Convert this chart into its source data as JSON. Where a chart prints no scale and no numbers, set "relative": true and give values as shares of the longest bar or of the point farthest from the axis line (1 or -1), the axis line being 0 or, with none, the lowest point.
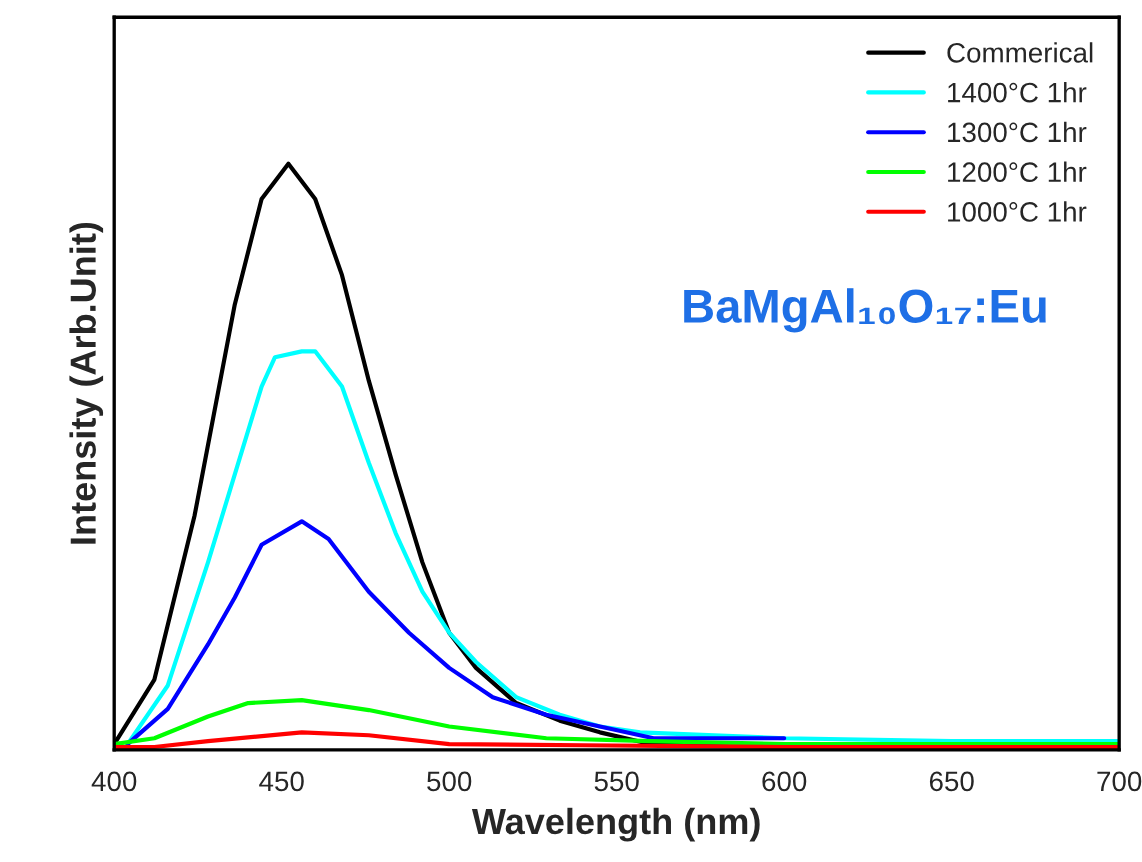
{
  "chart_data": {
    "type": "line",
    "xlabel": "Wavelength (nm)",
    "ylabel": "Intensity (Arb.Unit)",
    "relative": true,
    "xlim": [
      400,
      700
    ],
    "xticks": [
      400,
      450,
      500,
      550,
      600,
      650,
      700
    ],
    "legend": "top right",
    "grid": false,
    "marker": "none",
    "line_style": "solid",
    "annotations": [
      "BaMgAl₁₀O₁₇:Eu"
    ],
    "series": [
      {
        "name": "Commerical",
        "color": "#000000",
        "x": [
          400,
          412,
          424,
          436,
          444,
          452,
          460,
          468,
          476,
          484,
          492,
          500,
          508,
          520,
          533,
          545,
          560,
          600,
          650,
          700
        ],
        "values": [
          0.01,
          0.12,
          0.4,
          0.76,
          0.94,
          1.0,
          0.94,
          0.81,
          0.63,
          0.47,
          0.32,
          0.2,
          0.14,
          0.08,
          0.05,
          0.03,
          0.01,
          0.01,
          0.01,
          0.01
        ]
      },
      {
        "name": "1400°C 1hr",
        "color": "#00ffff",
        "x": [
          404,
          416,
          428,
          436,
          444,
          448,
          456,
          460,
          468,
          476,
          484,
          492,
          500,
          508,
          520,
          533,
          545,
          557,
          600,
          650,
          700
        ],
        "values": [
          0.01,
          0.11,
          0.32,
          0.47,
          0.62,
          0.67,
          0.68,
          0.68,
          0.62,
          0.49,
          0.37,
          0.27,
          0.2,
          0.15,
          0.09,
          0.06,
          0.04,
          0.03,
          0.02,
          0.015,
          0.015
        ]
      },
      {
        "name": "1300°C 1hr",
        "color": "#0000ff",
        "x": [
          404,
          416,
          428,
          436,
          444,
          456,
          464,
          476,
          488,
          500,
          513,
          529,
          545,
          561,
          600
        ],
        "values": [
          0.01,
          0.07,
          0.18,
          0.26,
          0.35,
          0.39,
          0.36,
          0.27,
          0.2,
          0.14,
          0.09,
          0.06,
          0.04,
          0.02,
          0.02
        ]
      },
      {
        "name": "1200°C 1hr",
        "color": "#00ff00",
        "x": [
          400,
          412,
          428,
          440,
          456,
          476,
          500,
          529,
          560,
          600,
          650,
          700
        ],
        "values": [
          0.01,
          0.02,
          0.057,
          0.08,
          0.085,
          0.068,
          0.04,
          0.02,
          0.015,
          0.01,
          0.01,
          0.01
        ]
      },
      {
        "name": "1000°C 1hr",
        "color": "#ff0000",
        "x": [
          400,
          412,
          428,
          456,
          476,
          500,
          540,
          600,
          650,
          700
        ],
        "values": [
          0.005,
          0.005,
          0.015,
          0.03,
          0.025,
          0.01,
          0.008,
          0.005,
          0.005,
          0.005
        ]
      }
    ]
  }
}
